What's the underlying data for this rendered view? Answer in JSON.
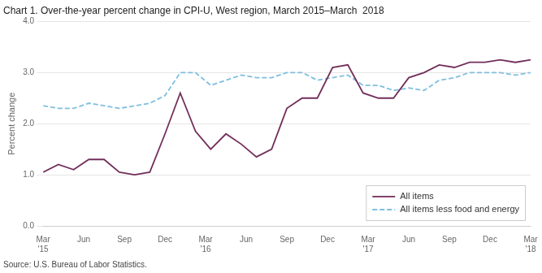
{
  "chart_data": {
    "type": "line",
    "title": "Chart 1. Over-the-year percent change in CPI-U, West region, March 2015–March  2018",
    "y_label": "Percent change",
    "source": "Source: U.S. Bureau of Labor Statistics.",
    "x": [
      0,
      1.125,
      2.25,
      3.375,
      4.5,
      5.625,
      6.75,
      7.875,
      9,
      10.125,
      11.25,
      12.375,
      13.5,
      14.625,
      15.75,
      16.875,
      18,
      19.125,
      20.25,
      21.375,
      22.5,
      23.625,
      24.75,
      25.875,
      27,
      28.125,
      29.25,
      30.375,
      31.5,
      32.625,
      33.75,
      34.875,
      36
    ],
    "series": [
      {
        "name": "All items",
        "color": "#722F5B",
        "line_style": "solid",
        "values": [
          1.05,
          1.2,
          1.1,
          1.3,
          1.3,
          1.05,
          1.0,
          1.05,
          1.8,
          2.6,
          1.85,
          1.5,
          1.8,
          1.6,
          1.35,
          1.5,
          2.3,
          2.5,
          2.5,
          3.1,
          3.15,
          2.6,
          2.5,
          2.5,
          2.9,
          3.0,
          3.15,
          3.1,
          3.2,
          3.2,
          3.25,
          3.2,
          3.25
        ]
      },
      {
        "name": "All items less food and energy",
        "color": "#7FBFDF",
        "line_style": "dashed",
        "values": [
          2.35,
          2.3,
          2.3,
          2.4,
          2.35,
          2.3,
          2.35,
          2.4,
          2.55,
          3.0,
          3.0,
          2.75,
          2.85,
          2.95,
          2.9,
          2.9,
          3.0,
          3.0,
          2.85,
          2.9,
          2.95,
          2.75,
          2.75,
          2.65,
          2.7,
          2.65,
          2.85,
          2.9,
          3.0,
          3.0,
          3.0,
          2.95,
          3.0
        ]
      }
    ],
    "xlim": [
      0,
      36
    ],
    "xticks": [
      {
        "value": 0,
        "label": "Mar\n'15"
      },
      {
        "value": 3,
        "label": "Jun"
      },
      {
        "value": 6,
        "label": "Sep"
      },
      {
        "value": 9,
        "label": "Dec"
      },
      {
        "value": 12,
        "label": "Mar\n'16"
      },
      {
        "value": 15,
        "label": "Jun"
      },
      {
        "value": 18,
        "label": "Sep"
      },
      {
        "value": 21,
        "label": "Dec"
      },
      {
        "value": 24,
        "label": "Mar\n'17"
      },
      {
        "value": 27,
        "label": "Jun"
      },
      {
        "value": 30,
        "label": "Sep"
      },
      {
        "value": 33,
        "label": "Dec"
      },
      {
        "value": 36,
        "label": "Mar\n'18"
      }
    ],
    "ylim": [
      0.0,
      4.0
    ],
    "yticks": [
      {
        "value": 0.0,
        "label": "0.0"
      },
      {
        "value": 1.0,
        "label": "1.0"
      },
      {
        "value": 2.0,
        "label": "2.0"
      },
      {
        "value": 3.0,
        "label": "3.0"
      },
      {
        "value": 4.0,
        "label": "4.0"
      }
    ],
    "grid": true,
    "legend": "lower right"
  }
}
